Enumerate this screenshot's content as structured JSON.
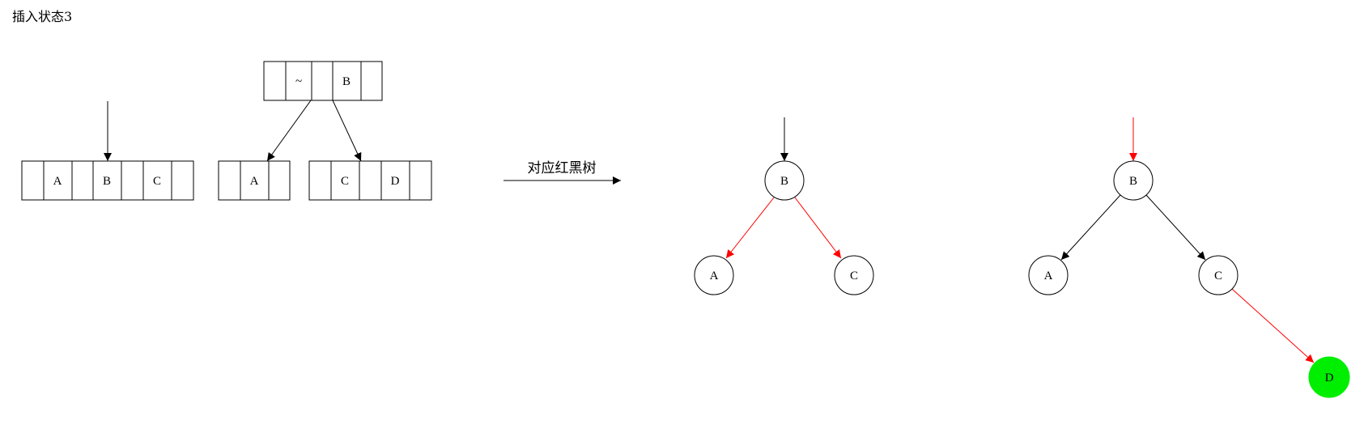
{
  "title": "插入状态3",
  "arrow_label": "对应红黑树",
  "btree": {
    "left_node": {
      "cells": [
        "",
        "A",
        "",
        "B",
        "",
        "C",
        ""
      ]
    },
    "top_node": {
      "cells": [
        "",
        "~",
        "",
        "B",
        ""
      ]
    },
    "child_a": {
      "cells": [
        "",
        "A",
        ""
      ]
    },
    "child_cd": {
      "cells": [
        "",
        "C",
        "",
        "D",
        ""
      ]
    }
  },
  "rbtree1": {
    "root": "B",
    "left": "A",
    "right": "C",
    "edge_colors": {
      "root_in": "#000000",
      "to_left": "#ff0000",
      "to_right": "#ff0000"
    }
  },
  "rbtree2": {
    "root": "B",
    "left": "A",
    "right": "C",
    "new_node": "D",
    "new_node_fill": "#00ee00",
    "edge_colors": {
      "root_in": "#ff0000",
      "to_left": "#000000",
      "to_right": "#000000",
      "to_new": "#ff0000"
    }
  },
  "colors": {
    "red": "#ff0000",
    "black": "#000000",
    "highlight": "#00ee00"
  }
}
